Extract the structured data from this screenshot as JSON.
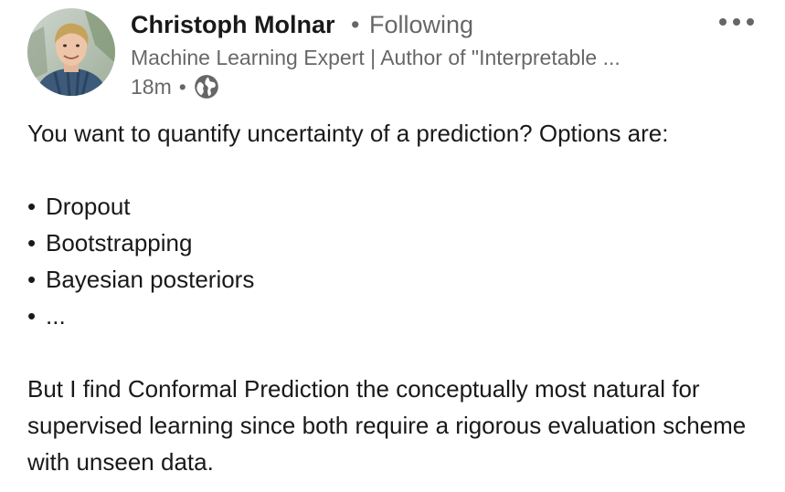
{
  "post": {
    "author": {
      "name": "Christoph Molnar",
      "separator": "•",
      "follow_status": "Following",
      "headline": "Machine Learning Expert | Author of \"Interpretable ...",
      "time_ago": "18m",
      "meta_separator": "•",
      "visibility_icon": "globe-icon",
      "avatar_icon": "avatar"
    },
    "more_icon": "more-horizontal-icon",
    "body": {
      "intro": "You want to quantify uncertainty of a prediction? Options are:",
      "bullet_char": "•",
      "options": [
        "Dropout",
        "Bootstrapping",
        "Bayesian posteriors",
        "..."
      ],
      "conclusion": "But I find Conformal Prediction the conceptually most natural for supervised learning since both require a rigorous evaluation scheme with unseen data."
    }
  },
  "colors": {
    "text_primary": "#000000e6",
    "text_secondary": "#00000099",
    "background": "#ffffff"
  }
}
